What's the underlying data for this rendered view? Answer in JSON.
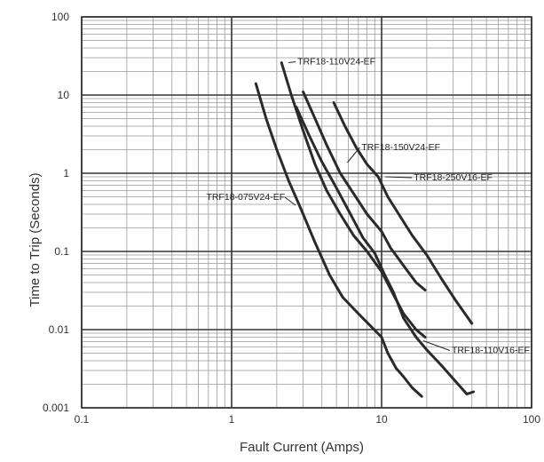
{
  "chart_data": {
    "type": "line",
    "xlabel": "Fault Current  (Amps)",
    "ylabel": "Time to Trip (Seconds)",
    "x_scale": "log",
    "y_scale": "log",
    "xlim": [
      0.1,
      100
    ],
    "ylim": [
      0.001,
      100
    ],
    "grid": true,
    "x_ticks": [
      "0.1",
      "1",
      "10",
      "100"
    ],
    "y_ticks": [
      "0.001",
      "0.01",
      "0.1",
      "1",
      "10",
      "100"
    ],
    "series": [
      {
        "name": "TRF18-075V24-EF",
        "points": [
          [
            1.45,
            14
          ],
          [
            1.7,
            5
          ],
          [
            2.0,
            2.0
          ],
          [
            2.4,
            0.8
          ],
          [
            2.9,
            0.35
          ],
          [
            3.6,
            0.13
          ],
          [
            4.5,
            0.05
          ],
          [
            5.5,
            0.026
          ],
          [
            7,
            0.016
          ],
          [
            8.5,
            0.011
          ],
          [
            10,
            0.008
          ],
          [
            11,
            0.005
          ],
          [
            12.5,
            0.0032
          ],
          [
            14,
            0.0025
          ],
          [
            16,
            0.0018
          ],
          [
            18.5,
            0.0014
          ]
        ]
      },
      {
        "name": "TRF18-110V24-EF",
        "points": [
          [
            2.15,
            26
          ],
          [
            2.5,
            10
          ],
          [
            3.0,
            3.5
          ],
          [
            3.6,
            1.3
          ],
          [
            4.3,
            0.6
          ],
          [
            5.3,
            0.3
          ],
          [
            6.5,
            0.16
          ],
          [
            8,
            0.1
          ],
          [
            10,
            0.055
          ],
          [
            12,
            0.028
          ],
          [
            14,
            0.016
          ],
          [
            17,
            0.01
          ],
          [
            19.5,
            0.008
          ]
        ]
      },
      {
        "name": "TRF18-150V24-EF",
        "points": [
          [
            3.0,
            11
          ],
          [
            3.6,
            5
          ],
          [
            4.3,
            2.3
          ],
          [
            5.3,
            1.0
          ],
          [
            6.5,
            0.55
          ],
          [
            8,
            0.3
          ],
          [
            10,
            0.18
          ],
          [
            11.5,
            0.11
          ],
          [
            13,
            0.08
          ],
          [
            14.5,
            0.06
          ],
          [
            17,
            0.04
          ],
          [
            19.5,
            0.032
          ]
        ]
      },
      {
        "name": "TRF18-250V16-EF",
        "points": [
          [
            4.8,
            8
          ],
          [
            5.7,
            4
          ],
          [
            6.8,
            2.1
          ],
          [
            8,
            1.3
          ],
          [
            9.5,
            0.9
          ],
          [
            11,
            0.5
          ],
          [
            13,
            0.3
          ],
          [
            16,
            0.16
          ],
          [
            20,
            0.09
          ],
          [
            25,
            0.045
          ],
          [
            31,
            0.024
          ],
          [
            40,
            0.012
          ]
        ]
      },
      {
        "name": "TRF18-110V16-EF",
        "points": [
          [
            2.7,
            7
          ],
          [
            3.3,
            3.0
          ],
          [
            4.0,
            1.4
          ],
          [
            5.0,
            0.65
          ],
          [
            6.2,
            0.3
          ],
          [
            7.5,
            0.15
          ],
          [
            9,
            0.095
          ],
          [
            10.5,
            0.05
          ],
          [
            12,
            0.03
          ],
          [
            14,
            0.014
          ],
          [
            17,
            0.008
          ],
          [
            20,
            0.0055
          ],
          [
            25,
            0.0035
          ],
          [
            31,
            0.0022
          ],
          [
            37,
            0.0015
          ],
          [
            41,
            0.0016
          ]
        ]
      }
    ],
    "annotations": [
      {
        "series": "TRF18-110V24-EF",
        "text": "TRF18-110V24-EF",
        "side": "right"
      },
      {
        "series": "TRF18-150V24-EF",
        "text": "TRF18-150V24-EF",
        "side": "right"
      },
      {
        "series": "TRF18-250V16-EF",
        "text": "TRF18-250V16-EF",
        "side": "right"
      },
      {
        "series": "TRF18-075V24-EF",
        "text": "TRF18-075V24-EF",
        "side": "left"
      },
      {
        "series": "TRF18-110V16-EF",
        "text": "TRF18-110V16-EF",
        "side": "right"
      }
    ]
  }
}
